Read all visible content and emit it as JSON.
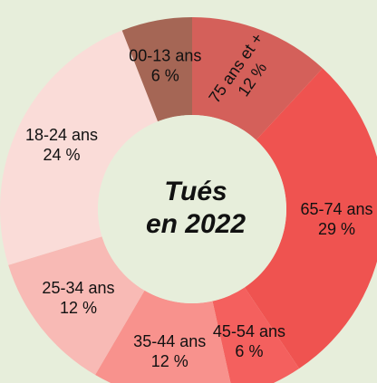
{
  "chart_data": {
    "type": "donut",
    "title": [
      "Tués",
      "en 2022"
    ],
    "categories": [
      "75 ans et +",
      "65-74 ans",
      "45-54 ans",
      "35-44 ans",
      "25-34 ans",
      "18-24 ans",
      "00-13 ans"
    ],
    "values": [
      12,
      29,
      6,
      12,
      12,
      24,
      6
    ],
    "value_labels": [
      "12 %",
      "29 %",
      "6 %",
      "12 %",
      "12 %",
      "24 %",
      "6 %"
    ],
    "colors": [
      "#d4605a",
      "#ef5350",
      "#f4605e",
      "#f8928d",
      "#f8bab5",
      "#fadcd8",
      "#a56655"
    ]
  }
}
